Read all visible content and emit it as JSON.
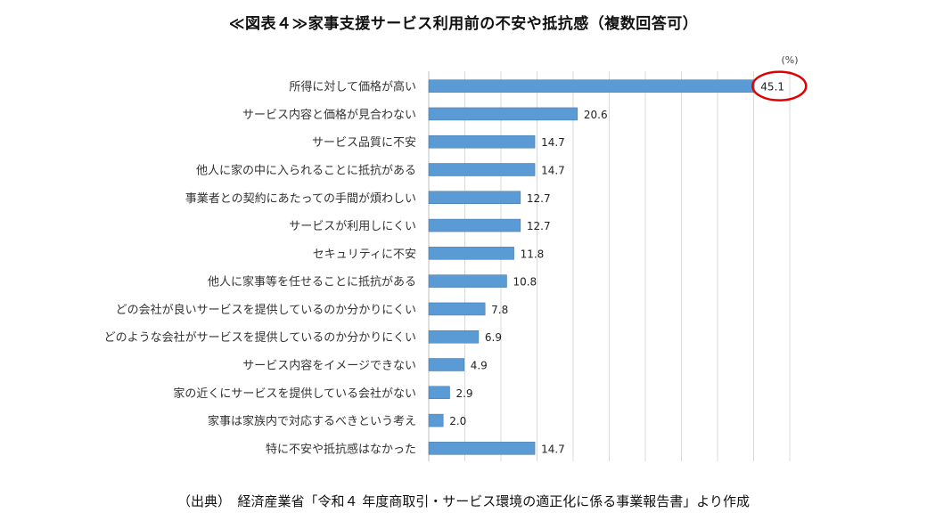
{
  "title": "≪図表４≫家事支援サービス利用前の不安や抵抗感（複数回答可）",
  "source": "（出典）　経済産業省「令和４ 年度商取引・サービス環境の適正化に係る事業報告書」より作成",
  "colors": {
    "bar": "#5B9BD5",
    "bar_stroke": "#41719C",
    "grid": "#D9D9D9",
    "highlight": "#E00000"
  },
  "chart_data": {
    "type": "bar",
    "orientation": "horizontal",
    "unit": "(%)",
    "grid": true,
    "xlim": [
      0,
      50
    ],
    "categories": [
      "所得に対して価格が高い",
      "サービス内容と価格が見合わない",
      "サービス品質に不安",
      "他人に家の中に入られることに抵抗がある",
      "事業者との契約にあたっての手間が煩わしい",
      "サービスが利用しにくい",
      "セキュリティに不安",
      "他人に家事等を任せることに抵抗がある",
      "どの会社が良いサービスを提供しているのか分かりにくい",
      "どのような会社がサービスを提供しているのか分かりにくい",
      "サービス内容をイメージできない",
      "家の近くにサービスを提供している会社がない",
      "家事は家族内で対応するべきという考え",
      "特に不安や抵抗感はなかった"
    ],
    "values": [
      45.1,
      20.6,
      14.7,
      14.7,
      12.7,
      12.7,
      11.8,
      10.8,
      7.8,
      6.9,
      4.9,
      2.9,
      2.0,
      14.7
    ],
    "value_labels": [
      "45.1",
      "20.6",
      "14.7",
      "14.7",
      "12.7",
      "12.7",
      "11.8",
      "10.8",
      "7.8",
      "6.9",
      "4.9",
      "2.9",
      "2.0",
      "14.7"
    ],
    "highlighted_index": 0
  }
}
